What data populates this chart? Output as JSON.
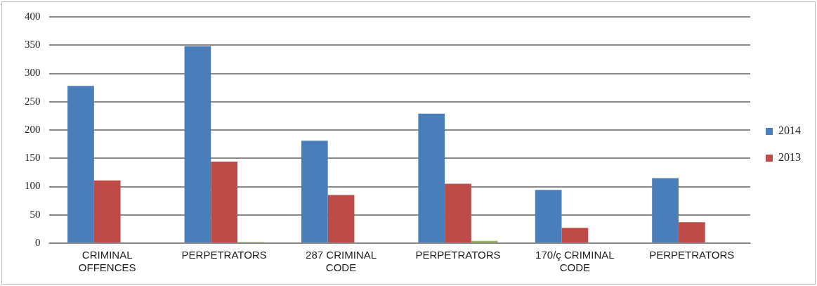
{
  "chart_data": {
    "type": "bar",
    "categories": [
      "CRIMINAL OFFENCES",
      "PERPETRATORS",
      "287 CRIMINAL CODE",
      "PERPETRATORS",
      "170/ç CRIMINAL CODE",
      "PERPETRATORS"
    ],
    "series": [
      {
        "name": "2014",
        "color": "#4a7ebb",
        "values": [
          278,
          348,
          181,
          229,
          94,
          115
        ]
      },
      {
        "name": "2013",
        "color": "#be4b48",
        "values": [
          111,
          144,
          85,
          105,
          27,
          37
        ]
      },
      {
        "color": "#98b954",
        "values": [
          0,
          2,
          null,
          4,
          0,
          0
        ]
      }
    ],
    "ylim": [
      0,
      400
    ],
    "yticks": [
      0,
      50,
      100,
      150,
      200,
      250,
      300,
      350,
      400
    ],
    "grid": "y",
    "legend": "right"
  }
}
